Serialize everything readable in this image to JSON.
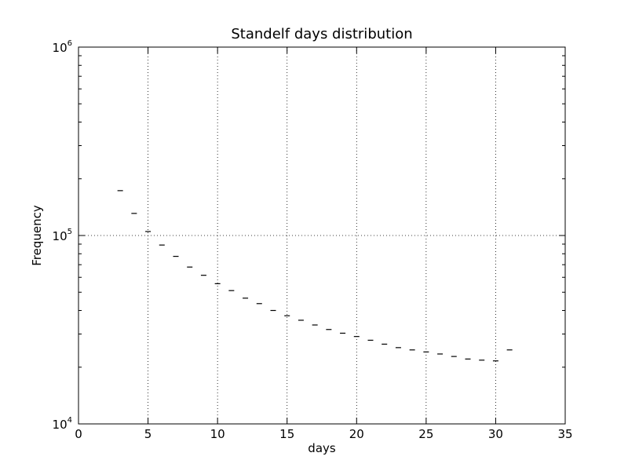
{
  "chart_data": {
    "type": "scatter",
    "title": "Standelf days distribution",
    "xlabel": "days",
    "ylabel": "Frequency",
    "xlim": [
      0,
      35
    ],
    "ylim": [
      10000,
      1000000
    ],
    "yscale": "log",
    "grid": true,
    "x_ticks": [
      0,
      5,
      10,
      15,
      20,
      25,
      30,
      35
    ],
    "y_ticks": [
      {
        "base": "10",
        "exp": "4",
        "value": 10000
      },
      {
        "base": "10",
        "exp": "5",
        "value": 100000
      },
      {
        "base": "10",
        "exp": "6",
        "value": 1000000
      }
    ],
    "marker": "horizontal-line",
    "series": [
      {
        "x": [
          3,
          4,
          5,
          6,
          7,
          8,
          9,
          10,
          11,
          12,
          13,
          14,
          15,
          16,
          17,
          18,
          19,
          20,
          21,
          22,
          23,
          24,
          25,
          26,
          27,
          28,
          29,
          30,
          31
        ],
        "y": [
          173000,
          131000,
          105000,
          89000,
          77500,
          68000,
          61500,
          55500,
          51000,
          46500,
          43500,
          40000,
          37500,
          35500,
          33500,
          31700,
          30300,
          29100,
          27800,
          26500,
          25400,
          24700,
          24100,
          23500,
          22800,
          22100,
          21800,
          21600,
          24700
        ]
      }
    ]
  }
}
